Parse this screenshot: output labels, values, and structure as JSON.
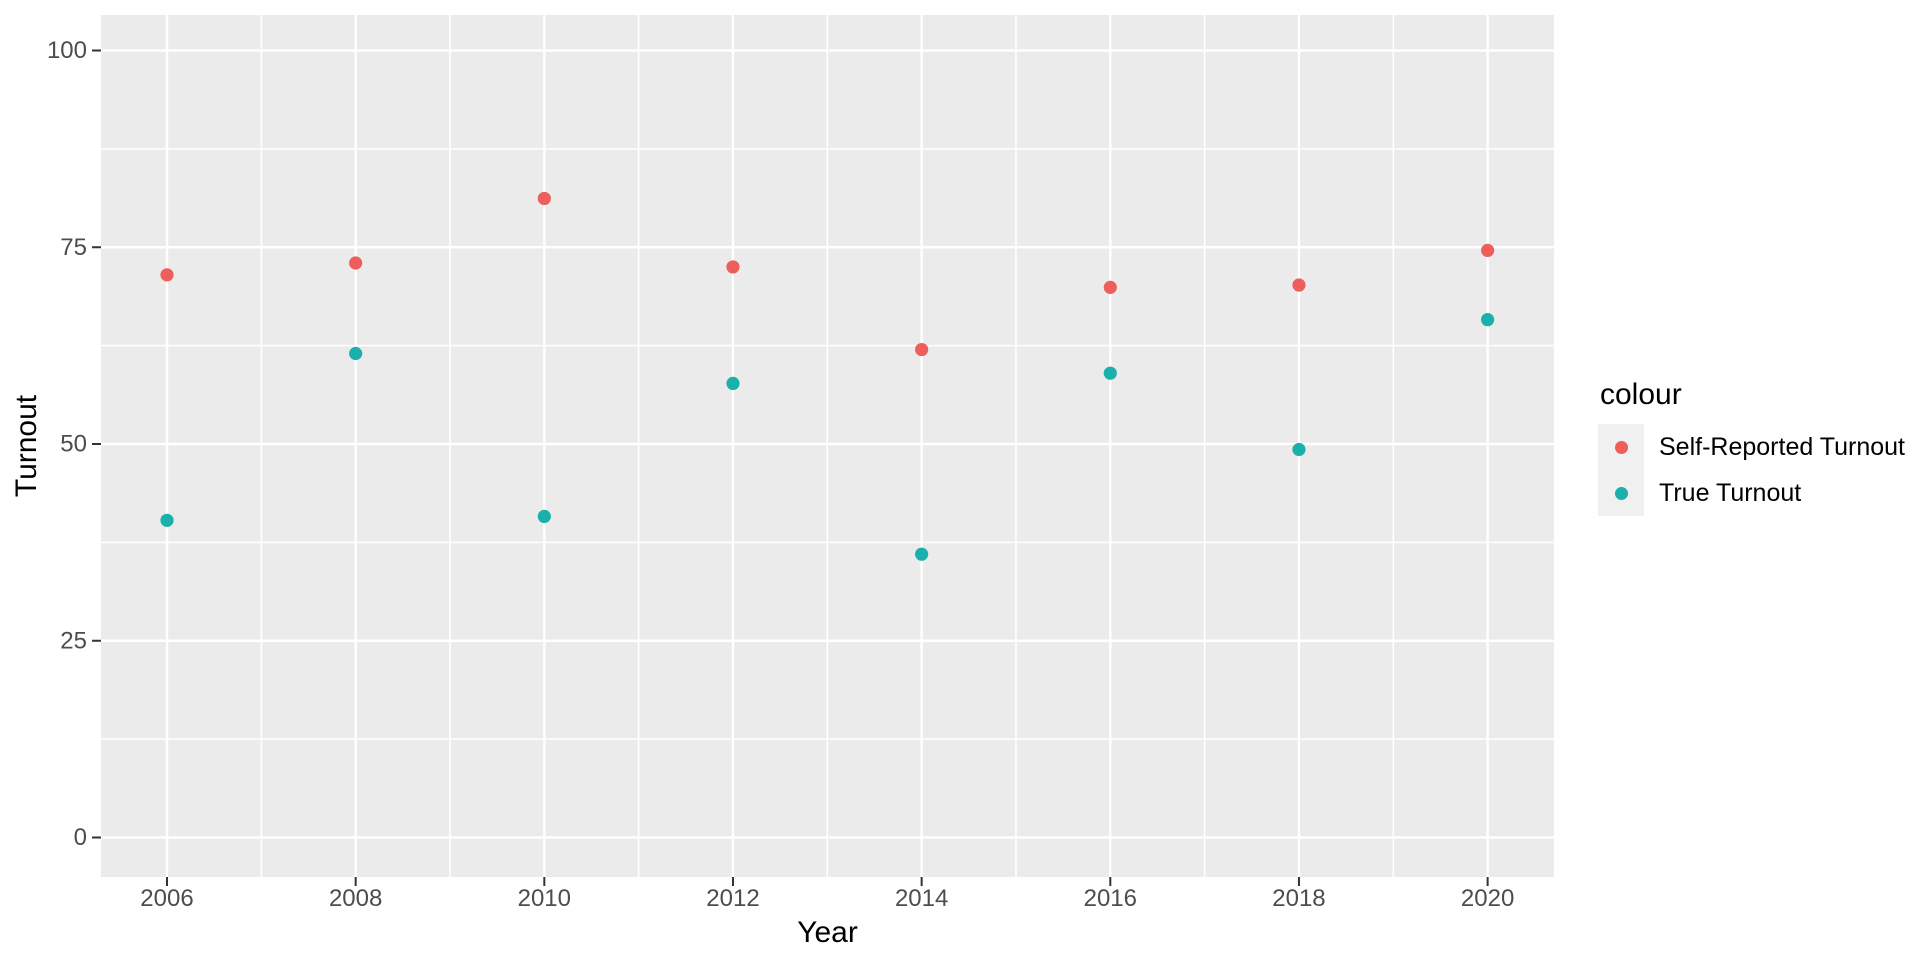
{
  "figure": {
    "background": "#FFFFFF",
    "panel_background": "#EBEBEB",
    "grid_color": "#FFFFFF",
    "tick_color": "#333333",
    "tick_label_color": "#4D4D4D",
    "axis_title_color": "#000000",
    "legend_key_background": "#F0F0F0"
  },
  "chart_data": {
    "type": "scatter",
    "title": "",
    "xlabel": "Year",
    "ylabel": "Turnout",
    "x": [
      2006,
      2008,
      2010,
      2012,
      2014,
      2016,
      2018,
      2020
    ],
    "x_tick_labels": [
      "2006",
      "2008",
      "2010",
      "2012",
      "2014",
      "2016",
      "2018",
      "2020"
    ],
    "y_ticks": [
      0,
      25,
      50,
      75,
      100
    ],
    "y_tick_labels": [
      "0",
      "25",
      "50",
      "75",
      "100"
    ],
    "x_minor_ticks": [
      2007,
      2009,
      2011,
      2013,
      2015,
      2017,
      2019
    ],
    "y_minor_ticks": [
      12.5,
      37.5,
      62.5,
      87.5
    ],
    "xlim": [
      2005.3,
      2020.7
    ],
    "ylim": [
      -5,
      105
    ],
    "grid": "white major and minor gridlines on gray panel",
    "legend_title": "colour",
    "legend_position": "right",
    "series": [
      {
        "name": "Self-Reported Turnout",
        "color": "#EE5E5B",
        "values": [
          71.5,
          73.0,
          81.2,
          72.5,
          62.0,
          69.9,
          70.2,
          74.6
        ]
      },
      {
        "name": "True Turnout",
        "color": "#1BB0AB",
        "values": [
          40.3,
          61.5,
          40.8,
          57.7,
          36.0,
          59.0,
          49.3,
          65.8
        ]
      }
    ]
  }
}
